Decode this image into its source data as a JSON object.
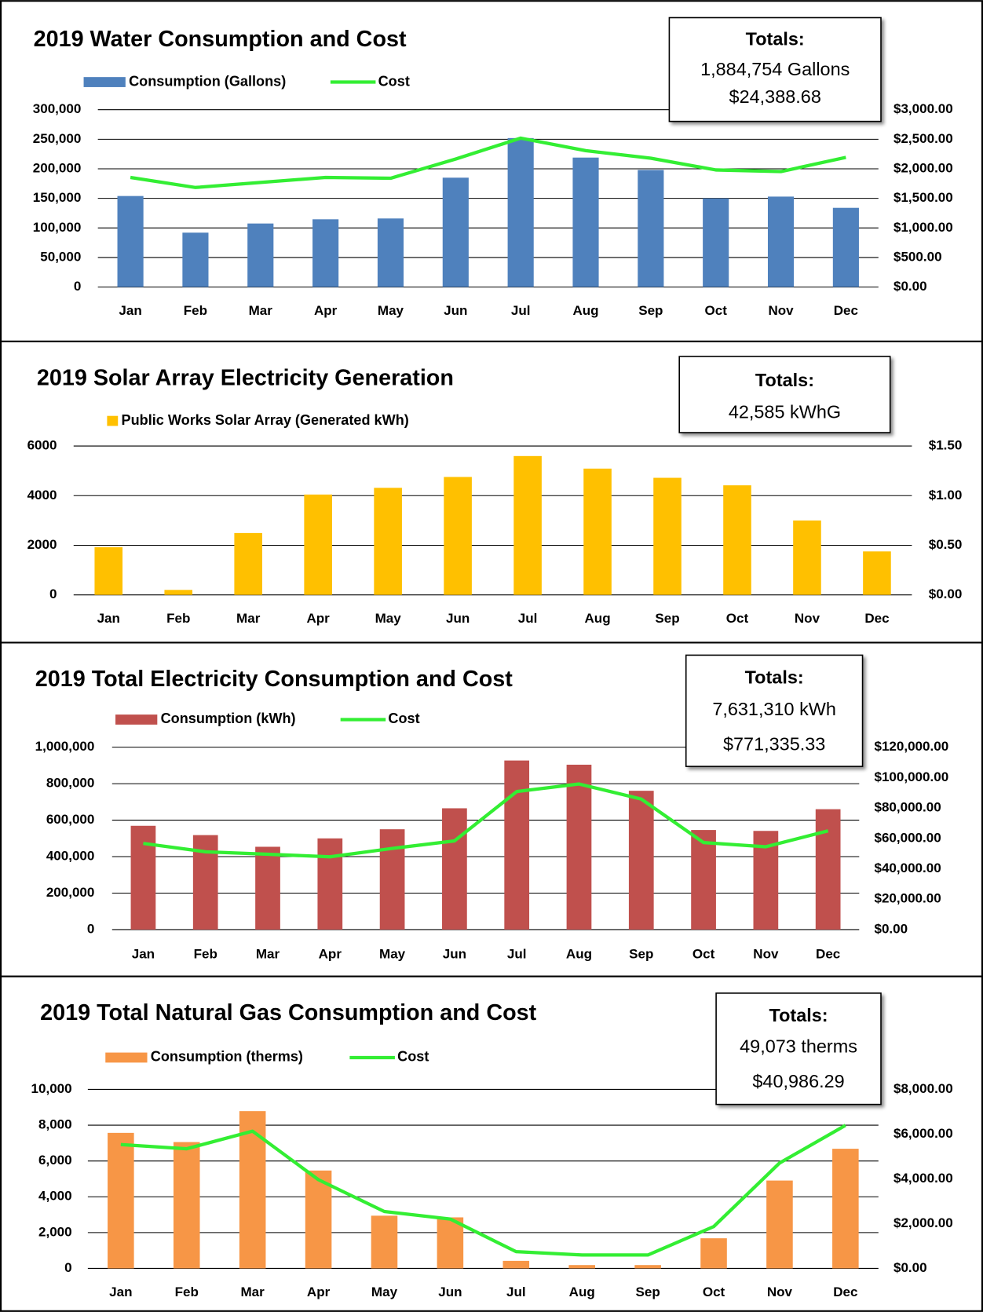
{
  "chart_data": [
    {
      "type": "bar",
      "title": "2019 Water Consumption and Cost",
      "categories": [
        "Jan",
        "Feb",
        "Mar",
        "Apr",
        "May",
        "Jun",
        "Jul",
        "Aug",
        "Sep",
        "Oct",
        "Nov",
        "Dec"
      ],
      "series": [
        {
          "name": "Consumption (Gallons)",
          "type": "bar",
          "color": "#4f81bd",
          "values": [
            154000,
            92000,
            107500,
            114600,
            116000,
            185000,
            252000,
            219000,
            198000,
            150000,
            153000,
            134000
          ]
        },
        {
          "name": "Cost",
          "type": "line",
          "axis": "y2",
          "color": "#33ee33",
          "values": [
            1854,
            1684,
            1769,
            1854,
            1840,
            2165,
            2519,
            2307,
            2179,
            1981,
            1953,
            2193
          ]
        }
      ],
      "ylim": [
        0,
        300000
      ],
      "yticks": [
        0,
        {
          "value": 50000,
          "label": "50,000"
        },
        {
          "value": 100000,
          "label": "100,000"
        },
        {
          "value": 150000,
          "label": "150,000"
        },
        {
          "value": 200000,
          "label": "200,000"
        },
        {
          "value": 250000,
          "label": "250,000"
        },
        {
          "value": 300000,
          "label": "300,000"
        }
      ],
      "y2lim": [
        0,
        3000
      ],
      "y2ticks": [
        {
          "value": 0,
          "label": "$0.00"
        },
        {
          "value": 500,
          "label": "$500.00"
        },
        {
          "value": 1000,
          "label": "$1,000.00"
        },
        {
          "value": 1500,
          "label": "$1,500.00"
        },
        {
          "value": 2000,
          "label": "$2,000.00"
        },
        {
          "value": 2500,
          "label": "$2,500.00"
        },
        {
          "value": 3000,
          "label": "$3,000.00"
        }
      ],
      "grid": true,
      "totals": {
        "title": "Totals:",
        "lines": [
          "1,884,754 Gallons",
          "$24,388.68"
        ]
      }
    },
    {
      "type": "bar",
      "title": "2019 Solar Array Electricity Generation",
      "categories": [
        "Jan",
        "Feb",
        "Mar",
        "Apr",
        "May",
        "Jun",
        "Jul",
        "Aug",
        "Sep",
        "Oct",
        "Nov",
        "Dec"
      ],
      "series": [
        {
          "name": "Public Works Solar Array (Generated kWh)",
          "type": "bar",
          "color": "#ffc000",
          "values": [
            1921,
            202,
            2494,
            4045,
            4315,
            4753,
            5596,
            5090,
            4719,
            4416,
            3000,
            1753
          ]
        }
      ],
      "ylim": [
        0,
        6000
      ],
      "yticks": [
        0,
        2000,
        4000,
        6000
      ],
      "y2lim": [
        0,
        1.5
      ],
      "y2ticks": [
        {
          "value": 0,
          "label": "$0.00"
        },
        {
          "value": 0.5,
          "label": "$0.50"
        },
        {
          "value": 1,
          "label": "$1.00"
        },
        {
          "value": 1.5,
          "label": "$1.50"
        }
      ],
      "grid": true,
      "totals": {
        "title": "Totals:",
        "lines": [
          "42,585 kWhG"
        ]
      }
    },
    {
      "type": "bar",
      "title": "2019 Total Electricity Consumption and Cost",
      "categories": [
        "Jan",
        "Feb",
        "Mar",
        "Apr",
        "May",
        "Jun",
        "Jul",
        "Aug",
        "Sep",
        "Oct",
        "Nov",
        "Dec"
      ],
      "series": [
        {
          "name": "Consumption (kWh)",
          "type": "bar",
          "color": "#c0504d",
          "values": [
            569000,
            518000,
            454000,
            500000,
            550000,
            665000,
            927000,
            904000,
            761000,
            546000,
            541000,
            660000
          ]
        },
        {
          "name": "Cost",
          "type": "line",
          "axis": "y2",
          "color": "#33ee33",
          "values": [
            56697,
            51193,
            49541,
            47890,
            53394,
            58349,
            90826,
            95780,
            85872,
            57248,
            54495,
            64954
          ]
        }
      ],
      "ylim": [
        0,
        1000000
      ],
      "yticks": [
        0,
        {
          "value": 200000,
          "label": "200,000"
        },
        {
          "value": 400000,
          "label": "400,000"
        },
        {
          "value": 600000,
          "label": "600,000"
        },
        {
          "value": 800000,
          "label": "800,000"
        },
        {
          "value": 1000000,
          "label": "1,000,000"
        }
      ],
      "y2lim": [
        0,
        120000
      ],
      "y2ticks": [
        {
          "value": 0,
          "label": "$0.00"
        },
        {
          "value": 20000,
          "label": "$20,000.00"
        },
        {
          "value": 40000,
          "label": "$40,000.00"
        },
        {
          "value": 60000,
          "label": "$60,000.00"
        },
        {
          "value": 80000,
          "label": "$80,000.00"
        },
        {
          "value": 100000,
          "label": "$100,000.00"
        },
        {
          "value": 120000,
          "label": "$120,000.00"
        }
      ],
      "grid": true,
      "totals": {
        "title": "Totals:",
        "lines": [
          "7,631,310 kWh",
          "$771,335.33"
        ]
      }
    },
    {
      "type": "bar",
      "title": "2019 Total Natural Gas Consumption and Cost",
      "categories": [
        "Jan",
        "Feb",
        "Mar",
        "Apr",
        "May",
        "Jun",
        "Jul",
        "Aug",
        "Sep",
        "Oct",
        "Nov",
        "Dec"
      ],
      "series": [
        {
          "name": "Consumption (therms)",
          "type": "bar",
          "color": "#f79646",
          "values": [
            7570,
            7056,
            8785,
            5467,
            2944,
            2850,
            421,
            187,
            187,
            1682,
            4907,
            6682
          ]
        },
        {
          "name": "Cost",
          "type": "line",
          "axis": "y2",
          "color": "#33ee33",
          "values": [
            5533,
            5346,
            6131,
            3963,
            2542,
            2206,
            748,
            598,
            598,
            1869,
            4710,
            6393
          ]
        }
      ],
      "ylim": [
        0,
        10000
      ],
      "yticks": [
        0,
        {
          "value": 2000,
          "label": "2,000"
        },
        {
          "value": 4000,
          "label": "4,000"
        },
        {
          "value": 6000,
          "label": "6,000"
        },
        {
          "value": 8000,
          "label": "8,000"
        },
        {
          "value": 10000,
          "label": "10,000"
        }
      ],
      "y2lim": [
        0,
        8000
      ],
      "y2ticks": [
        {
          "value": 0,
          "label": "$0.00"
        },
        {
          "value": 2000,
          "label": "$2,000.00"
        },
        {
          "value": 4000,
          "label": "$4,000.00"
        },
        {
          "value": 6000,
          "label": "$6,000.00"
        },
        {
          "value": 8000,
          "label": "$8,000.00"
        }
      ],
      "grid": true,
      "totals": {
        "title": "Totals:",
        "lines": [
          "49,073 therms",
          "$40,986.29"
        ]
      }
    }
  ]
}
